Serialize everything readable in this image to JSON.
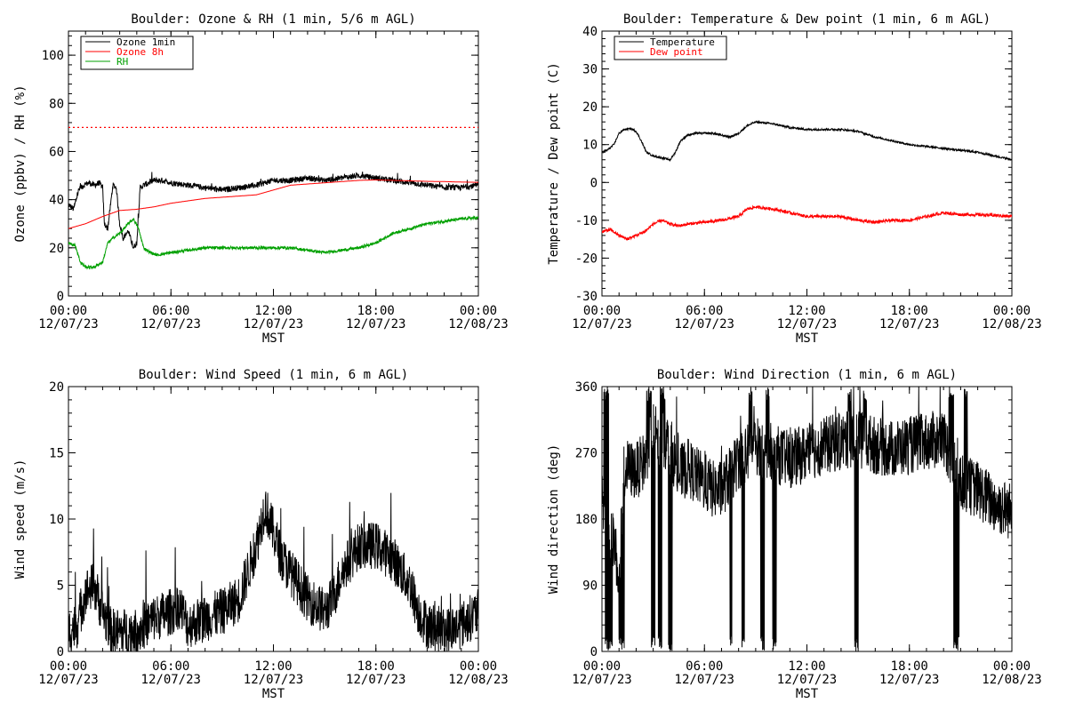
{
  "x_axis": {
    "ticks": [
      {
        "time": "00:00",
        "date": "12/07/23"
      },
      {
        "time": "06:00",
        "date": "12/07/23"
      },
      {
        "time": "12:00",
        "date": "12/07/23"
      },
      {
        "time": "18:00",
        "date": "12/07/23"
      },
      {
        "time": "00:00",
        "date": "12/08/23"
      }
    ],
    "label": "MST"
  },
  "chart_data": [
    {
      "id": "ozone-rh",
      "type": "line",
      "title": "Boulder: Ozone & RH (1 min, 5/6 m AGL)",
      "xlabel": "MST",
      "ylabel": "Ozone (ppbv) / RH (%)",
      "x_unit": "hours since 00:00 MST 12/07/23",
      "xlim": [
        0,
        24
      ],
      "ylim": [
        0,
        110
      ],
      "yticks": [
        0,
        20,
        40,
        60,
        80,
        100
      ],
      "legend": "top-left",
      "reference_lines": [
        {
          "y": 70,
          "color": "#ff0000",
          "style": "dotted"
        }
      ],
      "series": [
        {
          "name": "Ozone 1min",
          "color": "#000000",
          "noise": 1.2,
          "points": [
            [
              0,
              38
            ],
            [
              0.3,
              36
            ],
            [
              0.6,
              44
            ],
            [
              0.9,
              46
            ],
            [
              1.2,
              47
            ],
            [
              1.5,
              46
            ],
            [
              1.8,
              47
            ],
            [
              2,
              45
            ],
            [
              2.1,
              30
            ],
            [
              2.3,
              28
            ],
            [
              2.6,
              46
            ],
            [
              2.8,
              45
            ],
            [
              3.0,
              30
            ],
            [
              3.2,
              24
            ],
            [
              3.5,
              27
            ],
            [
              3.8,
              20
            ],
            [
              4.0,
              22
            ],
            [
              4.2,
              45
            ],
            [
              4.4,
              46
            ],
            [
              4.7,
              47
            ],
            [
              5,
              48
            ],
            [
              5.5,
              48
            ],
            [
              6,
              47
            ],
            [
              7,
              46
            ],
            [
              8,
              45
            ],
            [
              9,
              44
            ],
            [
              10,
              45
            ],
            [
              11,
              46
            ],
            [
              12,
              48
            ],
            [
              13,
              48
            ],
            [
              14,
              49
            ],
            [
              15,
              48
            ],
            [
              16,
              49
            ],
            [
              17,
              50
            ],
            [
              18,
              49
            ],
            [
              19,
              48
            ],
            [
              20,
              47
            ],
            [
              21,
              46
            ],
            [
              22,
              45
            ],
            [
              23,
              45
            ],
            [
              24,
              46
            ]
          ]
        },
        {
          "name": "Ozone 8h",
          "color": "#ff0000",
          "noise": 0,
          "points": [
            [
              0,
              28
            ],
            [
              1,
              30
            ],
            [
              2,
              33
            ],
            [
              3,
              35.5
            ],
            [
              4,
              36
            ],
            [
              5,
              37
            ],
            [
              6,
              38.5
            ],
            [
              7,
              39.5
            ],
            [
              8,
              40.5
            ],
            [
              9,
              41
            ],
            [
              10,
              41.5
            ],
            [
              11,
              42
            ],
            [
              12,
              44
            ],
            [
              13,
              46
            ],
            [
              14,
              46.5
            ],
            [
              15,
              47
            ],
            [
              16,
              47.5
            ],
            [
              17,
              48
            ],
            [
              18,
              48.2
            ],
            [
              19,
              48
            ],
            [
              20,
              47.8
            ],
            [
              21,
              47.6
            ],
            [
              22,
              47.5
            ],
            [
              23,
              47.3
            ],
            [
              24,
              47.2
            ]
          ]
        },
        {
          "name": "RH",
          "color": "#00a000",
          "noise": 0.6,
          "points": [
            [
              0,
              22
            ],
            [
              0.4,
              21
            ],
            [
              0.7,
              14
            ],
            [
              1.0,
              12
            ],
            [
              1.5,
              12
            ],
            [
              2.0,
              14
            ],
            [
              2.3,
              22
            ],
            [
              2.6,
              24
            ],
            [
              3.0,
              26
            ],
            [
              3.5,
              30
            ],
            [
              3.8,
              32
            ],
            [
              4.1,
              28
            ],
            [
              4.4,
              20
            ],
            [
              4.8,
              18
            ],
            [
              5.2,
              17
            ],
            [
              6,
              18
            ],
            [
              7,
              19
            ],
            [
              8,
              20
            ],
            [
              9,
              20
            ],
            [
              10,
              20
            ],
            [
              11,
              20
            ],
            [
              12,
              20
            ],
            [
              13,
              20
            ],
            [
              14,
              19
            ],
            [
              15,
              18
            ],
            [
              16,
              19
            ],
            [
              17,
              20
            ],
            [
              18,
              22
            ],
            [
              19,
              26
            ],
            [
              20,
              28
            ],
            [
              21,
              30
            ],
            [
              22,
              31
            ],
            [
              23,
              32
            ],
            [
              24,
              32.5
            ]
          ]
        }
      ]
    },
    {
      "id": "temp-dew",
      "type": "line",
      "title": "Boulder: Temperature & Dew point (1 min, 6 m AGL)",
      "xlabel": "MST",
      "ylabel": "Temperature / Dew point (C)",
      "x_unit": "hours since 00:00 MST 12/07/23",
      "xlim": [
        0,
        24
      ],
      "ylim": [
        -30,
        40
      ],
      "yticks": [
        -30,
        -20,
        -10,
        0,
        10,
        20,
        30,
        40
      ],
      "legend": "top-left",
      "series": [
        {
          "name": "Temperature",
          "color": "#000000",
          "noise": 0.25,
          "points": [
            [
              0,
              8
            ],
            [
              0.3,
              8.5
            ],
            [
              0.7,
              10
            ],
            [
              1.0,
              13
            ],
            [
              1.3,
              14
            ],
            [
              1.7,
              14.2
            ],
            [
              2.0,
              13.5
            ],
            [
              2.3,
              11
            ],
            [
              2.6,
              8
            ],
            [
              3.0,
              7
            ],
            [
              3.5,
              6.5
            ],
            [
              4.0,
              6
            ],
            [
              4.3,
              8
            ],
            [
              4.6,
              11
            ],
            [
              5.0,
              12.5
            ],
            [
              5.5,
              13
            ],
            [
              6.0,
              13
            ],
            [
              6.5,
              13
            ],
            [
              7,
              12.5
            ],
            [
              7.5,
              12
            ],
            [
              8,
              13
            ],
            [
              8.5,
              15
            ],
            [
              9,
              16
            ],
            [
              10,
              15.5
            ],
            [
              11,
              14.5
            ],
            [
              12,
              14
            ],
            [
              13,
              14
            ],
            [
              14,
              14
            ],
            [
              15,
              13.5
            ],
            [
              16,
              12
            ],
            [
              17,
              11
            ],
            [
              18,
              10
            ],
            [
              19,
              9.5
            ],
            [
              20,
              9
            ],
            [
              21,
              8.5
            ],
            [
              22,
              8
            ],
            [
              23,
              7
            ],
            [
              24,
              6
            ]
          ]
        },
        {
          "name": "Dew point",
          "color": "#ff0000",
          "noise": 0.4,
          "points": [
            [
              0,
              -13
            ],
            [
              0.5,
              -12.5
            ],
            [
              1.0,
              -14
            ],
            [
              1.5,
              -15
            ],
            [
              2.0,
              -14
            ],
            [
              2.5,
              -13
            ],
            [
              3.0,
              -11
            ],
            [
              3.5,
              -10
            ],
            [
              4.0,
              -11
            ],
            [
              4.5,
              -11.5
            ],
            [
              5,
              -11
            ],
            [
              6,
              -10.5
            ],
            [
              7,
              -10
            ],
            [
              8,
              -9
            ],
            [
              8.5,
              -7
            ],
            [
              9,
              -6.5
            ],
            [
              10,
              -7
            ],
            [
              11,
              -8
            ],
            [
              12,
              -9
            ],
            [
              13,
              -9
            ],
            [
              14,
              -9
            ],
            [
              15,
              -10
            ],
            [
              16,
              -10.5
            ],
            [
              17,
              -10
            ],
            [
              18,
              -10
            ],
            [
              19,
              -9
            ],
            [
              20,
              -8
            ],
            [
              21,
              -8.5
            ],
            [
              22,
              -8.5
            ],
            [
              23,
              -8.7
            ],
            [
              24,
              -9
            ]
          ]
        }
      ]
    },
    {
      "id": "wind-speed",
      "type": "line",
      "title": "Boulder: Wind Speed (1 min, 6 m AGL)",
      "xlabel": "MST",
      "ylabel": "Wind speed (m/s)",
      "x_unit": "hours since 00:00 MST 12/07/23",
      "xlim": [
        0,
        24
      ],
      "ylim": [
        0,
        20
      ],
      "yticks": [
        0,
        5,
        10,
        15,
        20
      ],
      "legend": "none",
      "series": [
        {
          "color": "#000000",
          "noise": 1.8,
          "min": 0,
          "points": [
            [
              0,
              1.5
            ],
            [
              0.5,
              2
            ],
            [
              1.0,
              4.5
            ],
            [
              1.5,
              5
            ],
            [
              2.0,
              3
            ],
            [
              2.5,
              1.5
            ],
            [
              3.0,
              1.5
            ],
            [
              4.0,
              1.5
            ],
            [
              5.0,
              2.5
            ],
            [
              6.0,
              3
            ],
            [
              6.5,
              3.5
            ],
            [
              7.0,
              2
            ],
            [
              8.0,
              2.5
            ],
            [
              9.0,
              3
            ],
            [
              10.0,
              4
            ],
            [
              10.5,
              6
            ],
            [
              11.0,
              8
            ],
            [
              11.5,
              11
            ],
            [
              12.0,
              9
            ],
            [
              12.5,
              7
            ],
            [
              13.0,
              6
            ],
            [
              14.0,
              4
            ],
            [
              15.0,
              3
            ],
            [
              15.5,
              4
            ],
            [
              16.0,
              6
            ],
            [
              17.0,
              8
            ],
            [
              18.0,
              8
            ],
            [
              19.0,
              7
            ],
            [
              20.0,
              5
            ],
            [
              20.5,
              3
            ],
            [
              21.0,
              2
            ],
            [
              22.0,
              1.5
            ],
            [
              23.0,
              2
            ],
            [
              24.0,
              3
            ]
          ]
        }
      ]
    },
    {
      "id": "wind-dir",
      "type": "line",
      "title": "Boulder: Wind Direction (1 min, 6 m AGL)",
      "xlabel": "MST",
      "ylabel": "Wind direction (deg)",
      "x_unit": "hours since 00:00 MST 12/07/23",
      "xlim": [
        0,
        24
      ],
      "ylim": [
        0,
        360
      ],
      "yticks": [
        0,
        90,
        180,
        270,
        360
      ],
      "legend": "none",
      "series": [
        {
          "color": "#000000",
          "noise": 40,
          "min": 0,
          "max": 360,
          "points": [
            [
              0,
              200
            ],
            [
              0.7,
              150
            ],
            [
              1.0,
              100
            ],
            [
              1.3,
              250
            ],
            [
              2.0,
              245
            ],
            [
              2.5,
              260
            ],
            [
              3.0,
              300
            ],
            [
              4.0,
              280
            ],
            [
              4.5,
              240
            ],
            [
              5.0,
              250
            ],
            [
              6.0,
              230
            ],
            [
              6.5,
              220
            ],
            [
              7.0,
              220
            ],
            [
              8.0,
              260
            ],
            [
              9.0,
              280
            ],
            [
              10.0,
              270
            ],
            [
              11.0,
              260
            ],
            [
              12.0,
              270
            ],
            [
              13.0,
              280
            ],
            [
              14.0,
              285
            ],
            [
              15.0,
              290
            ],
            [
              16.0,
              280
            ],
            [
              17.0,
              275
            ],
            [
              18.0,
              280
            ],
            [
              19.0,
              285
            ],
            [
              20.0,
              290
            ],
            [
              21.0,
              230
            ],
            [
              22.0,
              220
            ],
            [
              23.0,
              200
            ],
            [
              24.0,
              190
            ]
          ],
          "drops": [
            [
              0.2,
              0.6
            ],
            [
              1.0,
              1.3
            ],
            [
              2.9,
              3.1
            ],
            [
              3.3,
              3.5
            ],
            [
              3.9,
              4.1
            ],
            [
              7.5,
              7.6
            ],
            [
              8.2,
              8.35
            ],
            [
              9.3,
              9.5
            ],
            [
              10.0,
              10.2
            ],
            [
              14.8,
              15.0
            ],
            [
              20.6,
              20.9
            ]
          ],
          "spikes": [
            [
              0.1,
              0.4
            ],
            [
              2.6,
              2.9
            ],
            [
              3.4,
              3.7
            ],
            [
              8.6,
              8.8
            ],
            [
              9.6,
              9.8
            ],
            [
              14.4,
              14.6
            ],
            [
              15.3,
              15.5
            ],
            [
              20.3,
              20.6
            ],
            [
              21.2,
              21.4
            ]
          ]
        }
      ]
    }
  ]
}
